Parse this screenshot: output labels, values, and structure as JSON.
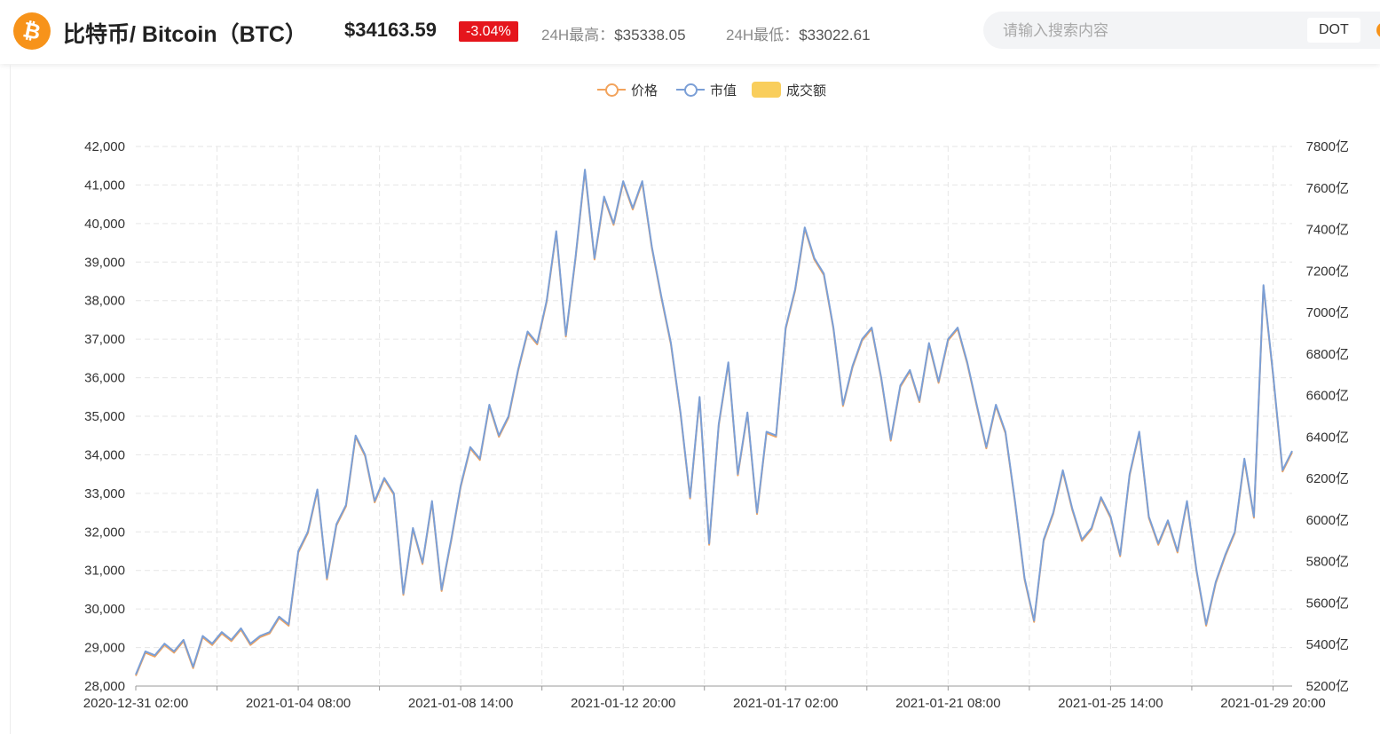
{
  "header": {
    "coin_icon": "bitcoin-icon",
    "coin_symbol_glyph": "₿",
    "title": "比特币/ Bitcoin（BTC）",
    "price": "$34163.59",
    "change": "-3.04%",
    "high_label": "24H最高：",
    "high_value": "$35338.05",
    "low_label": "24H最低：",
    "low_value": "$33022.61"
  },
  "search": {
    "placeholder": "请输入搜索内容",
    "value": "",
    "tag": "DOT"
  },
  "colors": {
    "price": "#f2a35c",
    "market_cap": "#7b9fd6",
    "volume": "#f9ce5c",
    "change_negative": "#e5151c",
    "btc_orange": "#f7931a"
  },
  "chart_data": {
    "type": "line",
    "title": "",
    "legend_position": "top-center",
    "legend": [
      "价格",
      "市值",
      "成交额"
    ],
    "grid": true,
    "x_tick_labels": [
      "2020-12-31 02:00",
      "2021-01-04 08:00",
      "2021-01-08 14:00",
      "2021-01-12 20:00",
      "2021-01-17 02:00",
      "2021-01-21 08:00",
      "2021-01-25 14:00",
      "2021-01-29 20:00"
    ],
    "y_left": {
      "ylim": [
        28000,
        42000
      ],
      "tick_labels": [
        "28,000",
        "29,000",
        "30,000",
        "31,000",
        "32,000",
        "33,000",
        "34,000",
        "35,000",
        "36,000",
        "37,000",
        "38,000",
        "39,000",
        "40,000",
        "41,000",
        "42,000"
      ]
    },
    "y_right": {
      "ylim": [
        5200,
        7800
      ],
      "unit": "亿",
      "tick_labels": [
        "5200亿",
        "5400亿",
        "5600亿",
        "5800亿",
        "6000亿",
        "6200亿",
        "6400亿",
        "6600亿",
        "6800亿",
        "7000亿",
        "7200亿",
        "7400亿",
        "7600亿",
        "7800亿"
      ]
    },
    "x_range": [
      "2020-12-31 02:00",
      "2021-01-30 08:00"
    ],
    "series": [
      {
        "name": "价格",
        "points": [
          [
            "2020-12-31 02:00",
            28300
          ],
          [
            "2020-12-31 08:00",
            28900
          ],
          [
            "2020-12-31 14:00",
            28800
          ],
          [
            "2020-12-31 20:00",
            29100
          ],
          [
            "2021-01-01 02:00",
            28900
          ],
          [
            "2021-01-01 08:00",
            29200
          ],
          [
            "2021-01-01 14:00",
            28500
          ],
          [
            "2021-01-01 20:00",
            29300
          ],
          [
            "2021-01-02 02:00",
            29100
          ],
          [
            "2021-01-02 08:00",
            29400
          ],
          [
            "2021-01-02 14:00",
            29200
          ],
          [
            "2021-01-02 20:00",
            29500
          ],
          [
            "2021-01-03 02:00",
            29100
          ],
          [
            "2021-01-03 08:00",
            29300
          ],
          [
            "2021-01-03 14:00",
            29400
          ],
          [
            "2021-01-03 20:00",
            29800
          ],
          [
            "2021-01-04 02:00",
            29600
          ],
          [
            "2021-01-04 08:00",
            31500
          ],
          [
            "2021-01-04 14:00",
            32000
          ],
          [
            "2021-01-04 20:00",
            33100
          ],
          [
            "2021-01-05 02:00",
            30800
          ],
          [
            "2021-01-05 08:00",
            32200
          ],
          [
            "2021-01-05 14:00",
            32700
          ],
          [
            "2021-01-05 20:00",
            34500
          ],
          [
            "2021-01-06 02:00",
            34000
          ],
          [
            "2021-01-06 08:00",
            32800
          ],
          [
            "2021-01-06 14:00",
            33400
          ],
          [
            "2021-01-06 20:00",
            33000
          ],
          [
            "2021-01-07 02:00",
            30400
          ],
          [
            "2021-01-07 08:00",
            32100
          ],
          [
            "2021-01-07 14:00",
            31200
          ],
          [
            "2021-01-07 20:00",
            32800
          ],
          [
            "2021-01-08 02:00",
            30500
          ],
          [
            "2021-01-08 08:00",
            31800
          ],
          [
            "2021-01-08 14:00",
            33200
          ],
          [
            "2021-01-08 20:00",
            34200
          ],
          [
            "2021-01-09 02:00",
            33900
          ],
          [
            "2021-01-09 08:00",
            35300
          ],
          [
            "2021-01-09 14:00",
            34500
          ],
          [
            "2021-01-09 20:00",
            35000
          ],
          [
            "2021-01-10 02:00",
            36200
          ],
          [
            "2021-01-10 08:00",
            37200
          ],
          [
            "2021-01-10 14:00",
            36900
          ],
          [
            "2021-01-10 20:00",
            38000
          ],
          [
            "2021-01-11 02:00",
            39800
          ],
          [
            "2021-01-11 08:00",
            37100
          ],
          [
            "2021-01-11 14:00",
            39100
          ],
          [
            "2021-01-11 20:00",
            41400
          ],
          [
            "2021-01-12 02:00",
            39100
          ],
          [
            "2021-01-12 08:00",
            40700
          ],
          [
            "2021-01-12 14:00",
            40000
          ],
          [
            "2021-01-12 20:00",
            41100
          ],
          [
            "2021-01-13 02:00",
            40400
          ],
          [
            "2021-01-13 08:00",
            41100
          ],
          [
            "2021-01-13 14:00",
            39400
          ],
          [
            "2021-01-13 20:00",
            38100
          ],
          [
            "2021-01-14 02:00",
            36900
          ],
          [
            "2021-01-14 08:00",
            35100
          ],
          [
            "2021-01-14 14:00",
            32900
          ],
          [
            "2021-01-14 20:00",
            35500
          ],
          [
            "2021-01-15 02:00",
            31700
          ],
          [
            "2021-01-15 08:00",
            34800
          ],
          [
            "2021-01-15 14:00",
            36400
          ],
          [
            "2021-01-15 20:00",
            33500
          ],
          [
            "2021-01-16 02:00",
            35100
          ],
          [
            "2021-01-16 08:00",
            32500
          ],
          [
            "2021-01-16 14:00",
            34600
          ],
          [
            "2021-01-16 20:00",
            34500
          ],
          [
            "2021-01-17 02:00",
            37300
          ],
          [
            "2021-01-17 08:00",
            38300
          ],
          [
            "2021-01-17 14:00",
            39900
          ],
          [
            "2021-01-17 20:00",
            39100
          ],
          [
            "2021-01-18 02:00",
            38700
          ],
          [
            "2021-01-18 08:00",
            37300
          ],
          [
            "2021-01-18 14:00",
            35300
          ],
          [
            "2021-01-18 20:00",
            36300
          ],
          [
            "2021-01-19 02:00",
            37000
          ],
          [
            "2021-01-19 08:00",
            37300
          ],
          [
            "2021-01-19 14:00",
            36000
          ],
          [
            "2021-01-19 20:00",
            34400
          ],
          [
            "2021-01-20 02:00",
            35800
          ],
          [
            "2021-01-20 08:00",
            36200
          ],
          [
            "2021-01-20 14:00",
            35400
          ],
          [
            "2021-01-20 20:00",
            36900
          ],
          [
            "2021-01-21 02:00",
            35900
          ],
          [
            "2021-01-21 08:00",
            37000
          ],
          [
            "2021-01-21 14:00",
            37300
          ],
          [
            "2021-01-21 20:00",
            36400
          ],
          [
            "2021-01-22 02:00",
            35300
          ],
          [
            "2021-01-22 08:00",
            34200
          ],
          [
            "2021-01-22 14:00",
            35300
          ],
          [
            "2021-01-22 20:00",
            34600
          ],
          [
            "2021-01-23 02:00",
            32800
          ],
          [
            "2021-01-23 08:00",
            30800
          ],
          [
            "2021-01-23 14:00",
            29700
          ],
          [
            "2021-01-23 20:00",
            31800
          ],
          [
            "2021-01-24 02:00",
            32500
          ],
          [
            "2021-01-24 08:00",
            33600
          ],
          [
            "2021-01-24 14:00",
            32600
          ],
          [
            "2021-01-24 20:00",
            31800
          ],
          [
            "2021-01-25 02:00",
            32100
          ],
          [
            "2021-01-25 08:00",
            32900
          ],
          [
            "2021-01-25 14:00",
            32400
          ],
          [
            "2021-01-25 20:00",
            31400
          ],
          [
            "2021-01-26 02:00",
            33500
          ],
          [
            "2021-01-26 08:00",
            34600
          ],
          [
            "2021-01-26 14:00",
            32400
          ],
          [
            "2021-01-26 20:00",
            31700
          ],
          [
            "2021-01-27 02:00",
            32300
          ],
          [
            "2021-01-27 08:00",
            31500
          ],
          [
            "2021-01-27 14:00",
            32800
          ],
          [
            "2021-01-27 20:00",
            31000
          ],
          [
            "2021-01-28 02:00",
            29600
          ],
          [
            "2021-01-28 08:00",
            30700
          ],
          [
            "2021-01-28 14:00",
            31400
          ],
          [
            "2021-01-28 20:00",
            32000
          ],
          [
            "2021-01-29 02:00",
            33900
          ],
          [
            "2021-01-29 08:00",
            32400
          ],
          [
            "2021-01-29 14:00",
            38400
          ],
          [
            "2021-01-29 20:00",
            36100
          ],
          [
            "2021-01-30 02:00",
            33600
          ],
          [
            "2021-01-30 08:00",
            34100
          ]
        ]
      },
      {
        "name": "市值",
        "note_values_follow_price_scale": true
      },
      {
        "name": "成交额"
      }
    ]
  }
}
